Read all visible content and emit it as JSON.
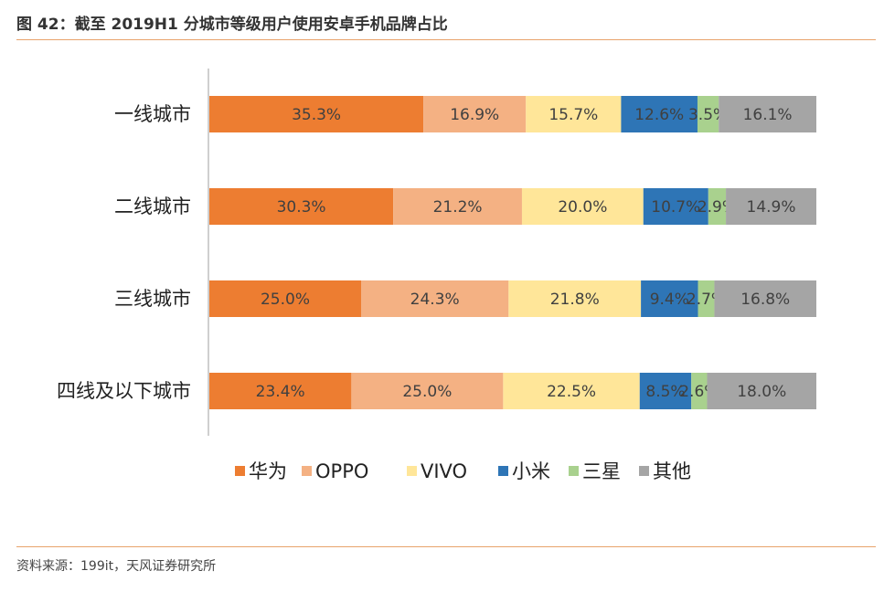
{
  "title": "图 42：截至 2019H1 分城市等级用户使用安卓手机品牌占比",
  "source": "资料来源：199it，天风证券研究所",
  "chart_data": {
    "type": "bar",
    "orientation": "horizontal",
    "stacked": true,
    "percent_stacked": true,
    "categories": [
      "一线城市",
      "二线城市",
      "三线城市",
      "四线及以下城市"
    ],
    "series": [
      {
        "name": "华为",
        "color": "#ed7d31",
        "values": [
          35.3,
          30.3,
          25.0,
          23.4
        ],
        "labels": [
          "35.3%",
          "30.3%",
          "25.0%",
          "23.4%"
        ]
      },
      {
        "name": "OPPO",
        "color": "#f4b183",
        "values": [
          16.9,
          21.2,
          24.3,
          25.0
        ],
        "labels": [
          "16.9%",
          "21.2%",
          "24.3%",
          "25.0%"
        ]
      },
      {
        "name": "VIVO",
        "color": "#ffe699",
        "values": [
          15.7,
          20.0,
          21.8,
          22.5
        ],
        "labels": [
          "15.7%",
          "20.0%",
          "21.8%",
          "22.5%"
        ]
      },
      {
        "name": "小米",
        "color": "#2e75b6",
        "values": [
          12.6,
          10.7,
          9.4,
          8.5
        ],
        "labels": [
          "12.6%",
          "10.7%",
          "9.4%",
          "8.5%"
        ]
      },
      {
        "name": "三星",
        "color": "#a9d18e",
        "values": [
          3.5,
          2.9,
          2.7,
          2.6
        ],
        "labels": [
          "3.5%",
          "2.9%",
          "2.7%",
          "2.6%"
        ]
      },
      {
        "name": "其他",
        "color": "#a5a5a5",
        "values": [
          16.1,
          14.9,
          16.8,
          18.0
        ],
        "labels": [
          "16.1%",
          "14.9%",
          "16.8%",
          "18.0%"
        ]
      }
    ],
    "legend_position": "bottom",
    "grid": false,
    "data_label_color": "#404040"
  }
}
